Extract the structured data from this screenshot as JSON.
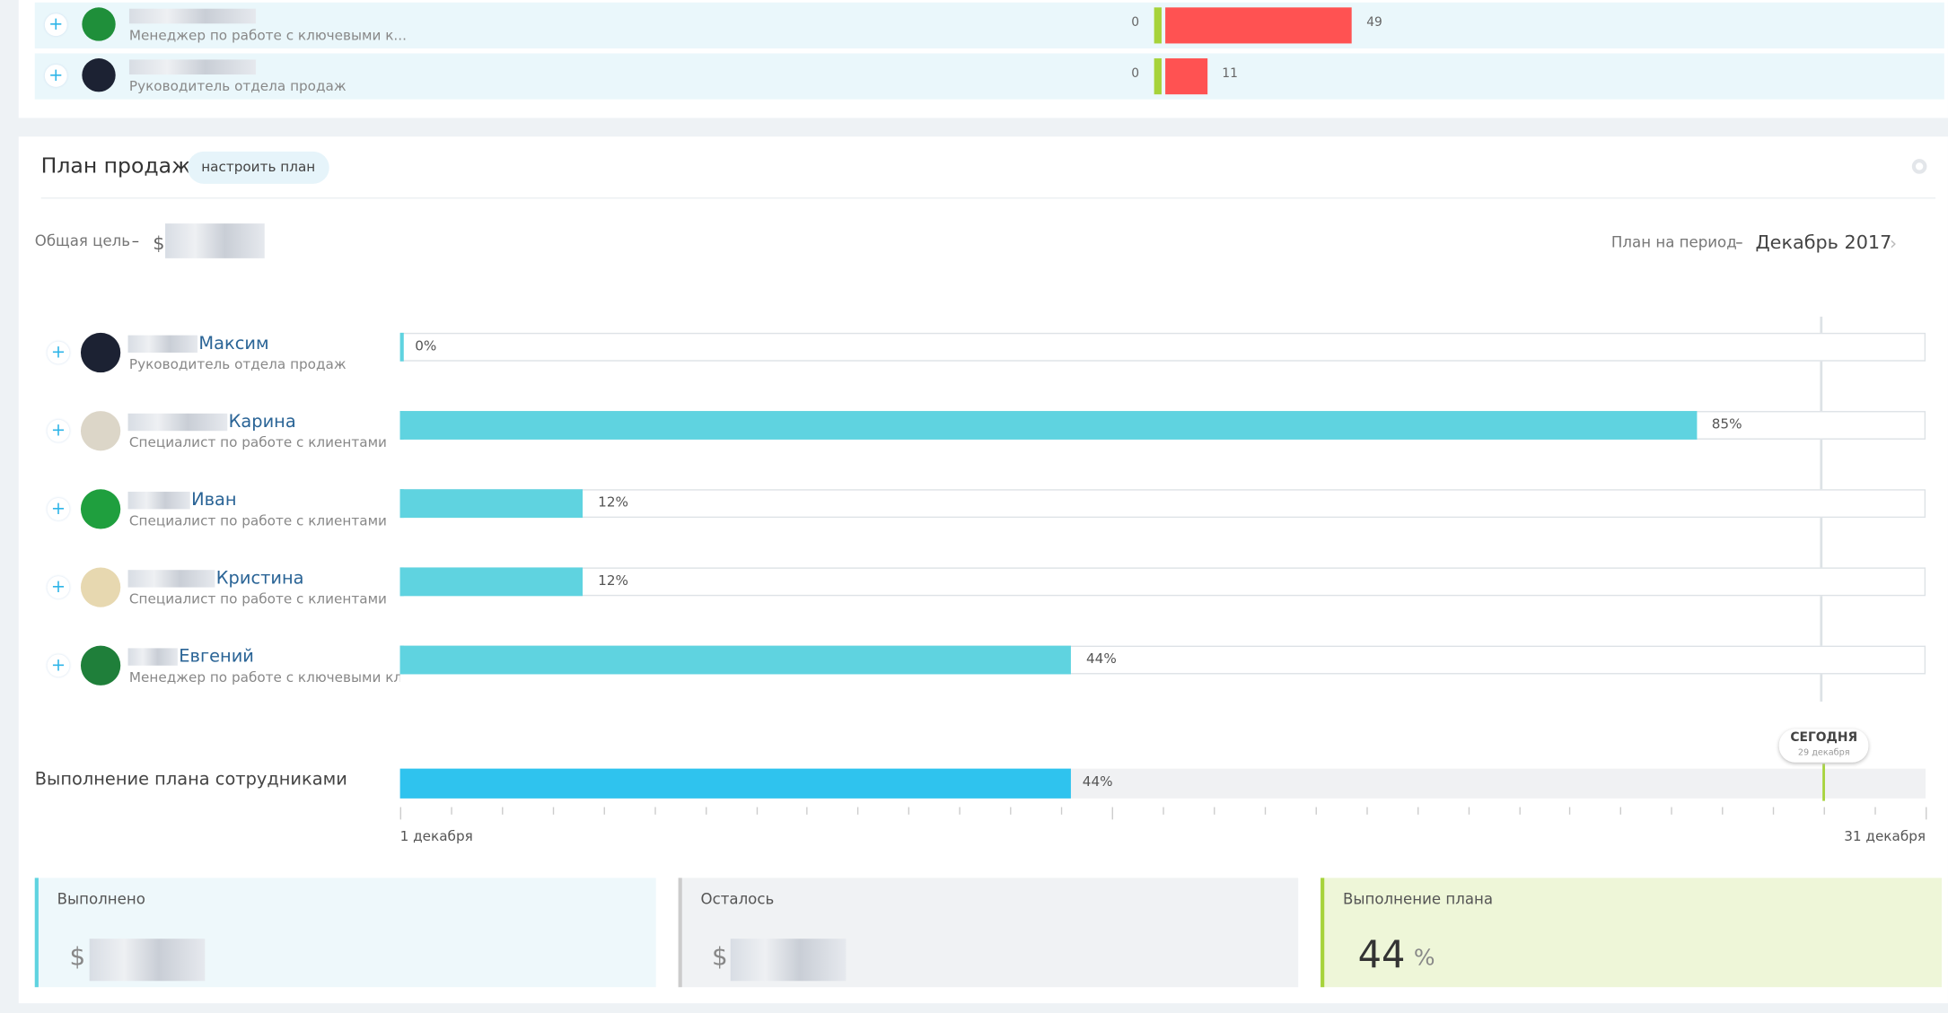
{
  "top_rows": [
    {
      "role": "Менеджер по работе с ключевыми к...",
      "start": 0,
      "value": 49
    },
    {
      "role": "Руководитель отдела продаж",
      "start": 0,
      "value": 11
    }
  ],
  "plan": {
    "title": "План продаж",
    "button": "настроить план",
    "goal_label": "Общая цель",
    "dash": "–",
    "currency": "$",
    "period_label": "План на период",
    "period": "Декабрь 2017",
    "employees": [
      {
        "name": "Максим",
        "role": "Руководитель отдела продаж",
        "percent": 0,
        "percent_label": "0%"
      },
      {
        "name": "Карина",
        "role": "Специалист по работе с клиентами",
        "percent": 85,
        "percent_label": "85%"
      },
      {
        "name": "Иван",
        "role": "Специалист по работе с клиентами",
        "percent": 12,
        "percent_label": "12%"
      },
      {
        "name": "Кристина",
        "role": "Специалист по работе с клиентами",
        "percent": 12,
        "percent_label": "12%"
      },
      {
        "name": "Евгений",
        "role": "Менеджер по работе с ключевыми клие...",
        "percent": 44,
        "percent_label": "44%"
      }
    ],
    "total": {
      "label": "Выполнение плана сотрудниками",
      "percent": 44,
      "percent_label": "44%",
      "start_label": "1 декабря",
      "end_label": "31 декабря",
      "today_label": "СЕГОДНЯ",
      "today_date": "29 декабря",
      "today_day": 29,
      "days": 31
    },
    "cards": {
      "done": "Выполнено",
      "left": "Осталось",
      "plan": "Выполнение плана",
      "plan_value": 44,
      "percent_sign": "%"
    }
  }
}
